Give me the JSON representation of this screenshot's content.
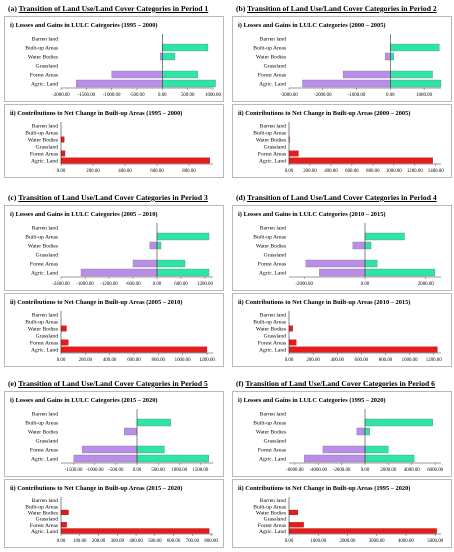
{
  "colors": {
    "loss": "#b98ee8",
    "gain": "#2ee4a7",
    "contrib": "#e81a1a",
    "axis": "#000000",
    "border": "#b9b9b9"
  },
  "categories": [
    "Barren land",
    "Built-up Areas",
    "Water Bodies",
    "Grassland",
    "Forest Areas",
    "Agric. Land"
  ],
  "chart_data": [
    {
      "panel_label": "(a)",
      "panel_title": "Transition of Land Use/Land Cover Categories in Period 1",
      "charts": [
        {
          "type": "bar",
          "orientation": "horizontal",
          "stacked": "diverging",
          "title": "i) Losses and Gains in LULC Categories (1995 – 2000)",
          "categories": [
            "Barren land",
            "Built-up Areas",
            "Water Bodies",
            "Grassland",
            "Forest Areas",
            "Agric. Land"
          ],
          "series": [
            {
              "values": [
                0,
                0,
                -40,
                0,
                -1000,
                -1700
              ]
            },
            {
              "values": [
                0,
                900,
                250,
                0,
                700,
                1050
              ]
            }
          ],
          "xlim": [
            -2000,
            1000
          ],
          "xticks": [
            -2000,
            -1500,
            -1000,
            -500,
            0,
            500,
            1000
          ],
          "xtick_labels": [
            "-2000.00",
            "-1500.00",
            "-1000.00",
            "-500.00",
            "0.00",
            "500.00",
            "1000.00"
          ]
        },
        {
          "type": "bar",
          "orientation": "horizontal",
          "title": "ii) Contributions to Net Change in Built-up Areas (1995 – 2000)",
          "categories": [
            "Barren land",
            "Built-up Areas",
            "Water Bodies",
            "Grassland",
            "Forest Areas",
            "Agric. Land"
          ],
          "values": [
            0,
            0,
            20,
            0,
            25,
            930
          ],
          "xlim": [
            0,
            950
          ],
          "xticks": [
            0,
            200,
            400,
            600,
            800
          ],
          "xtick_labels": [
            "0.00",
            "200.00",
            "400.00",
            "600.00",
            "800.00"
          ]
        }
      ]
    },
    {
      "panel_label": "(b)",
      "panel_title": "Transition of Land Use/Land Cover Categories in Period 2",
      "charts": [
        {
          "type": "bar",
          "orientation": "horizontal",
          "stacked": "diverging",
          "title": "i) Losses and Gains in LULC Categories (2000 – 2005)",
          "categories": [
            "Barren land",
            "Built-up Areas",
            "Water Bodies",
            "Grassland",
            "Forest Areas",
            "Agric. Land"
          ],
          "series": [
            {
              "values": [
                0,
                0,
                -150,
                0,
                -1400,
                -2600
              ]
            },
            {
              "values": [
                0,
                1450,
                100,
                0,
                1250,
                1500
              ]
            }
          ],
          "xlim": [
            -3000,
            1500
          ],
          "xticks": [
            -3000,
            -2000,
            -1000,
            0,
            1000
          ],
          "xtick_labels": [
            "-3000.00",
            "-2000.00",
            "-1000.00",
            "0.00",
            "1000.00"
          ]
        },
        {
          "type": "bar",
          "orientation": "horizontal",
          "title": "ii) Contributions to Net Change in Built-up Areas (2000 – 2005)",
          "categories": [
            "Barren land",
            "Built-up Areas",
            "Water Bodies",
            "Grassland",
            "Forest Areas",
            "Agric. Land"
          ],
          "values": [
            0,
            0,
            5,
            0,
            90,
            1370
          ],
          "xlim": [
            0,
            1450
          ],
          "xticks": [
            0,
            200,
            400,
            600,
            800,
            1000,
            1200,
            1400
          ],
          "xtick_labels": [
            "0.00",
            "200.00",
            "400.00",
            "600.00",
            "800.00",
            "1000.00",
            "1200.00",
            "1400.00"
          ]
        }
      ]
    },
    {
      "panel_label": "(c)",
      "panel_title": "Transition of Land Use/Land Cover Categories in Period 3",
      "charts": [
        {
          "type": "bar",
          "orientation": "horizontal",
          "stacked": "diverging",
          "title": "i) Losses and Gains in LULC Categories (2005 – 2010)",
          "categories": [
            "Barren land",
            "Built-up Areas",
            "Water Bodies",
            "Grassland",
            "Forest Areas",
            "Agric. Land"
          ],
          "series": [
            {
              "values": [
                0,
                0,
                -180,
                0,
                -600,
                -1900
              ]
            },
            {
              "values": [
                0,
                1300,
                100,
                0,
                700,
                1300
              ]
            }
          ],
          "xlim": [
            -2400,
            1400
          ],
          "xticks": [
            -2400,
            -1800,
            -1200,
            -600,
            0,
            600,
            1200
          ],
          "xtick_labels": [
            "-2400.00",
            "-1800.00",
            "-1200.00",
            "-600.00",
            "0.00",
            "600.00",
            "1200.00"
          ]
        },
        {
          "type": "bar",
          "orientation": "horizontal",
          "title": "ii) Contributions to Net Change in Built-up Areas (2005 – 2010)",
          "categories": [
            "Barren land",
            "Built-up Areas",
            "Water Bodies",
            "Grassland",
            "Forest Areas",
            "Agric. Land"
          ],
          "values": [
            0,
            0,
            45,
            0,
            60,
            1200
          ],
          "xlim": [
            0,
            1250
          ],
          "xticks": [
            0,
            200,
            400,
            600,
            800,
            1000,
            1200
          ],
          "xtick_labels": [
            "0.00",
            "200.00",
            "400.00",
            "600.00",
            "800.00",
            "1000.00",
            "1200.00"
          ]
        }
      ]
    },
    {
      "panel_label": "(d)",
      "panel_title": "Transition of Land Use/Land Cover Categories in Period 4",
      "charts": [
        {
          "type": "bar",
          "orientation": "horizontal",
          "stacked": "diverging",
          "title": "i) Losses and Gains in LULC Categories (2010 – 2015)",
          "categories": [
            "Barren land",
            "Built-up Areas",
            "Water Bodies",
            "Grassland",
            "Forest Areas",
            "Agric. Land"
          ],
          "series": [
            {
              "values": [
                0,
                0,
                -400,
                0,
                -1950,
                -1500
              ]
            },
            {
              "values": [
                0,
                1300,
                200,
                0,
                400,
                2300
              ]
            }
          ],
          "xlim": [
            -2500,
            2500
          ],
          "xticks": [
            -2000,
            0,
            2000
          ],
          "xtick_labels": [
            "-2000.00",
            "0.00",
            "2000.00"
          ]
        },
        {
          "type": "bar",
          "orientation": "horizontal",
          "title": "ii) Contributions to Net Change in Built-up Areas (2010 – 2015)",
          "categories": [
            "Barren land",
            "Built-up Areas",
            "Water Bodies",
            "Grassland",
            "Forest Areas",
            "Agric. Land"
          ],
          "values": [
            0,
            0,
            30,
            0,
            60,
            1230
          ],
          "xlim": [
            0,
            1260
          ],
          "xticks": [
            0,
            200,
            400,
            600,
            800,
            1000,
            1200
          ],
          "xtick_labels": [
            "0.00",
            "200.00",
            "400.00",
            "600.00",
            "800.00",
            "1000.00",
            "1200.00"
          ]
        }
      ]
    },
    {
      "panel_label": "(e)",
      "panel_title": "Transition of Land Use/Land Cover Categories in Period 5",
      "charts": [
        {
          "type": "bar",
          "orientation": "horizontal",
          "stacked": "diverging",
          "title": "i) Losses and Gains in LULC Categories (2015 – 2020)",
          "categories": [
            "Barren land",
            "Built-up Areas",
            "Water Bodies",
            "Grassland",
            "Forest Areas",
            "Agric. Land"
          ],
          "series": [
            {
              "values": [
                0,
                0,
                -300,
                0,
                -1300,
                -1500
              ]
            },
            {
              "values": [
                0,
                800,
                0,
                0,
                650,
                1700
              ]
            }
          ],
          "xlim": [
            -1800,
            1800
          ],
          "xticks": [
            -1500,
            -1000,
            -500,
            0,
            500,
            1000,
            1500
          ],
          "xtick_labels": [
            "-1500.00",
            "-1000.00",
            "-500.00",
            "0.00",
            "500.00",
            "1000.00",
            "1500.00"
          ]
        },
        {
          "type": "bar",
          "orientation": "horizontal",
          "title": "ii) Contributions to Net Change in Built-up Areas (2015 – 2020)",
          "categories": [
            "Barren land",
            "Built-up Areas",
            "Water Bodies",
            "Grassland",
            "Forest Areas",
            "Agric. Land"
          ],
          "values": [
            0,
            0,
            40,
            0,
            30,
            790
          ],
          "xlim": [
            0,
            810
          ],
          "xticks": [
            0,
            100,
            200,
            300,
            400,
            500,
            600,
            700,
            800
          ],
          "xtick_labels": [
            "0.00",
            "100.00",
            "200.00",
            "300.00",
            "400.00",
            "500.00",
            "600.00",
            "700.00",
            "800.00"
          ]
        }
      ]
    },
    {
      "panel_label": "(f)",
      "panel_title": "Transition of Land Use/Land Cover Categories in Period 6",
      "charts": [
        {
          "type": "bar",
          "orientation": "horizontal",
          "stacked": "diverging",
          "title": "i) Losses and Gains in LULC Categories (1995 – 2020)",
          "categories": [
            "Barren land",
            "Built-up Areas",
            "Water Bodies",
            "Grassland",
            "Forest Areas",
            "Agric. Land"
          ],
          "series": [
            {
              "values": [
                0,
                0,
                -700,
                0,
                -3600,
                -5200
              ]
            },
            {
              "values": [
                0,
                5800,
                400,
                0,
                2000,
                4200
              ]
            }
          ],
          "xlim": [
            -6500,
            6500
          ],
          "xticks": [
            -6000,
            -4000,
            -2000,
            0,
            2000,
            4000,
            6000
          ],
          "xtick_labels": [
            "-6000.00",
            "-4000.00",
            "-2000.00",
            "0.00",
            "2000.00",
            "4000.00",
            "6000.00"
          ]
        },
        {
          "type": "bar",
          "orientation": "horizontal",
          "title": "ii) Contributions to Net Change in Built-up Areas (1995 – 2020)",
          "categories": [
            "Barren land",
            "Built-up Areas",
            "Water Bodies",
            "Grassland",
            "Forest Areas",
            "Agric. Land"
          ],
          "values": [
            0,
            0,
            300,
            0,
            500,
            5050
          ],
          "xlim": [
            0,
            5200
          ],
          "xticks": [
            0,
            1000,
            2000,
            3000,
            4000,
            5000
          ],
          "xtick_labels": [
            "0.00",
            "1000.00",
            "2000.00",
            "3000.00",
            "4000.00",
            "5000.00"
          ]
        }
      ]
    }
  ]
}
